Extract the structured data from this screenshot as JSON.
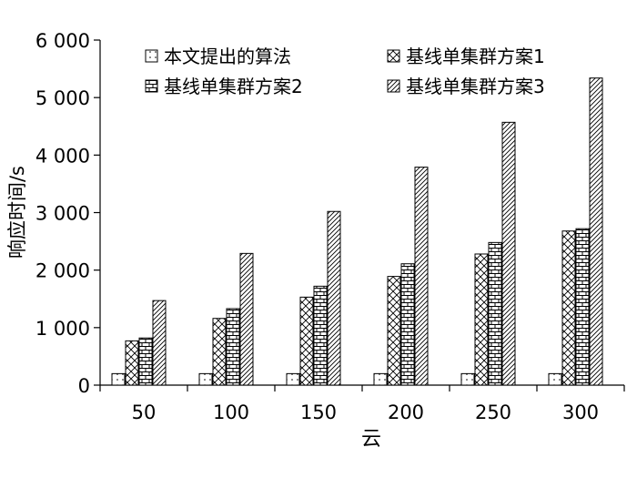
{
  "chart_data": {
    "type": "bar",
    "title": "",
    "xlabel": "云",
    "ylabel": "响应时间/s",
    "categories": [
      "50",
      "100",
      "150",
      "200",
      "250",
      "300"
    ],
    "ylim": [
      0,
      6000
    ],
    "yticks": [
      0,
      1000,
      2000,
      3000,
      4000,
      5000,
      6000
    ],
    "ytick_labels": [
      "0",
      "1 000",
      "2 000",
      "3 000",
      "4 000",
      "5 000",
      "6 000"
    ],
    "grid": false,
    "legend_position": "top",
    "series": [
      {
        "name": "本文提出的算法",
        "pattern": "dotted",
        "values": [
          200,
          200,
          200,
          200,
          200,
          200
        ]
      },
      {
        "name": "基线单集群方案1",
        "pattern": "crosshatch",
        "values": [
          770,
          1160,
          1530,
          1890,
          2280,
          2680
        ]
      },
      {
        "name": "基线单集群方案2",
        "pattern": "brick",
        "values": [
          820,
          1330,
          1720,
          2110,
          2480,
          2720
        ]
      },
      {
        "name": "基线单集群方案3",
        "pattern": "diagonal",
        "values": [
          1470,
          2290,
          3020,
          3790,
          4570,
          5340
        ]
      }
    ]
  }
}
